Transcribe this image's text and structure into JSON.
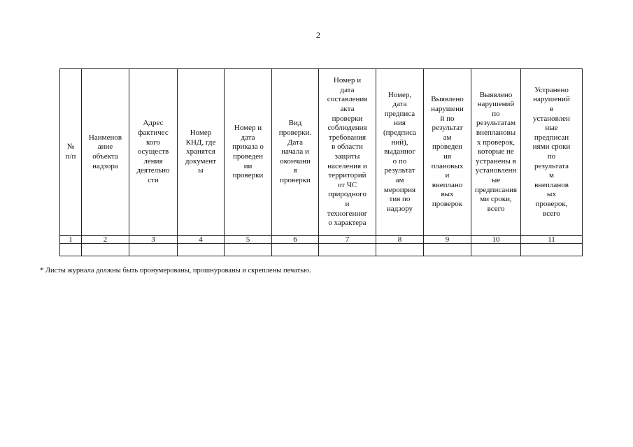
{
  "page_number": "2",
  "table": {
    "headers": [
      "№\nп/п",
      "Наименов\nание\nобъекта\nнадзора",
      "Адрес\nфактичес\nкого\nосуществ\nления\nдеятельно\nсти",
      "Номер\nКНД, где\nхранятся\nдокумент\nы",
      "Номер и\nдата\nприказа о\nпроведен\nии\nпроверки",
      "Вид\nпроверки.\nДата\nначала и\nокончани\nя\nпроверки",
      "Номер и\nдата\nсоставления\nакта\nпроверки\nсоблюдения\nтребования\nв области\nзащиты\nнаселения и\nтерриторий\nот ЧС\nприродного\nи\nтехногенног\nо характера",
      "Номер,\nдата\nпредписа\nния\n(предписа\nний),\nвыданног\nо по\nрезультат\nам\nмероприя\nтия по\nнадзору",
      "Выявлено\nнарушени\nй по\nрезультат\nам\nпроведен\nия\nплановых\nи\nвнеплано\nвых\nпроверок",
      "Выявлено\nнарушений\nпо\nрезультатам\nвнеплановы\nх проверок,\nкоторые не\nустранены в\nустановленн\nые\nпредписания\nми сроки,\nвсего",
      "Устранено\nнарушений\nв\nустановлен\nные\nпредписан\nиями сроки\nпо\nрезультата\nм\nвнепланов\nых\nпроверок,\nвсего"
    ],
    "column_numbers": [
      "1",
      "2",
      "3",
      "4",
      "5",
      "6",
      "7",
      "8",
      "9",
      "10",
      "11"
    ]
  },
  "footnote": "* Листы журнала должны быть пронумерованы, прошнурованы и скреплены печатью."
}
